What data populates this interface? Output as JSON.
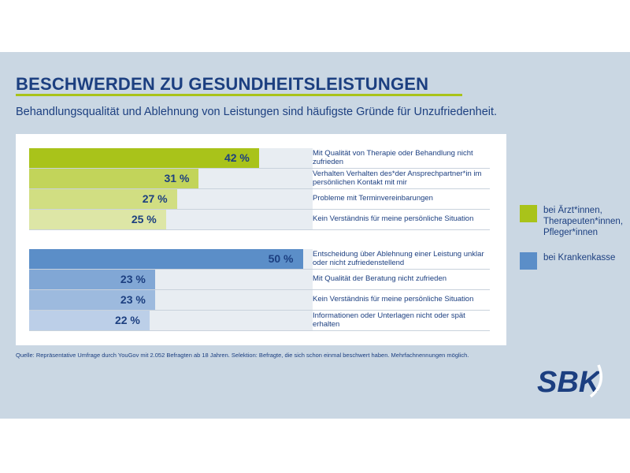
{
  "header": {
    "title": "BESCHWERDEN ZU GESUNDHEITSLEISTUNGEN",
    "subtitle": "Behandlungsqualität und Ablehnung von Leistungen sind häufigste Gründe für Unzufriedenheit."
  },
  "chart_data": {
    "type": "bar",
    "orientation": "horizontal",
    "xlim": [
      0,
      100
    ],
    "value_suffix": " %",
    "groups": [
      {
        "name": "bei Ärzt*innen, Therapeuten*innen, Pfleger*innen",
        "color": "#a9c31a",
        "categories": [
          "Mit Qualität von Therapie oder Behandlung nicht zufrieden",
          "Verhalten Verhalten des*der Ansprechpartner*in im persönlichen Kontakt mit mir",
          "Probleme mit Terminvereinbarungen",
          "Kein Verständnis für meine persönliche Situation"
        ],
        "values": [
          42,
          31,
          27,
          25
        ],
        "labels": [
          "42 %",
          "31 %",
          "27 %",
          "25 %"
        ]
      },
      {
        "name": "bei Krankenkasse",
        "color": "#5b8ec8",
        "categories": [
          "Entscheidung über Ablehnung einer Leistung unklar oder nicht zufriedenstellend",
          "Mit Qualität der Beratung nicht zufrieden",
          "Kein Verständnis für meine persönliche Situation",
          "Informationen oder Unterlagen nicht oder spät erhalten"
        ],
        "values": [
          50,
          23,
          23,
          22
        ],
        "labels": [
          "50 %",
          "23 %",
          "23 %",
          "22 %"
        ]
      }
    ],
    "legend": [
      {
        "label": "bei Ärzt*innen,\nTherapeuten*innen,\nPfleger*innen",
        "color": "#a9c31a"
      },
      {
        "label": "bei Krankenkasse",
        "color": "#5b8ec8"
      }
    ],
    "legend_position": "right"
  },
  "footer": {
    "source": "Quelle: Repräsentative Umfrage durch YouGov mit 2.052 Befragten ab 18 Jahren. Selektion: Befragte, die sich schon einmal beschwert haben. Mehrfachnennungen möglich."
  },
  "logo": {
    "text": "SBK",
    "color": "#1c3f80"
  },
  "colors": {
    "background": "#cad7e3",
    "text": "#1c3f80",
    "green_shades": [
      "#a9c31a",
      "#c2d45a",
      "#d1de82",
      "#dde6a6"
    ],
    "blue_shades": [
      "#5b8ec8",
      "#81a7d5",
      "#9dbade",
      "#bccfe8"
    ]
  }
}
